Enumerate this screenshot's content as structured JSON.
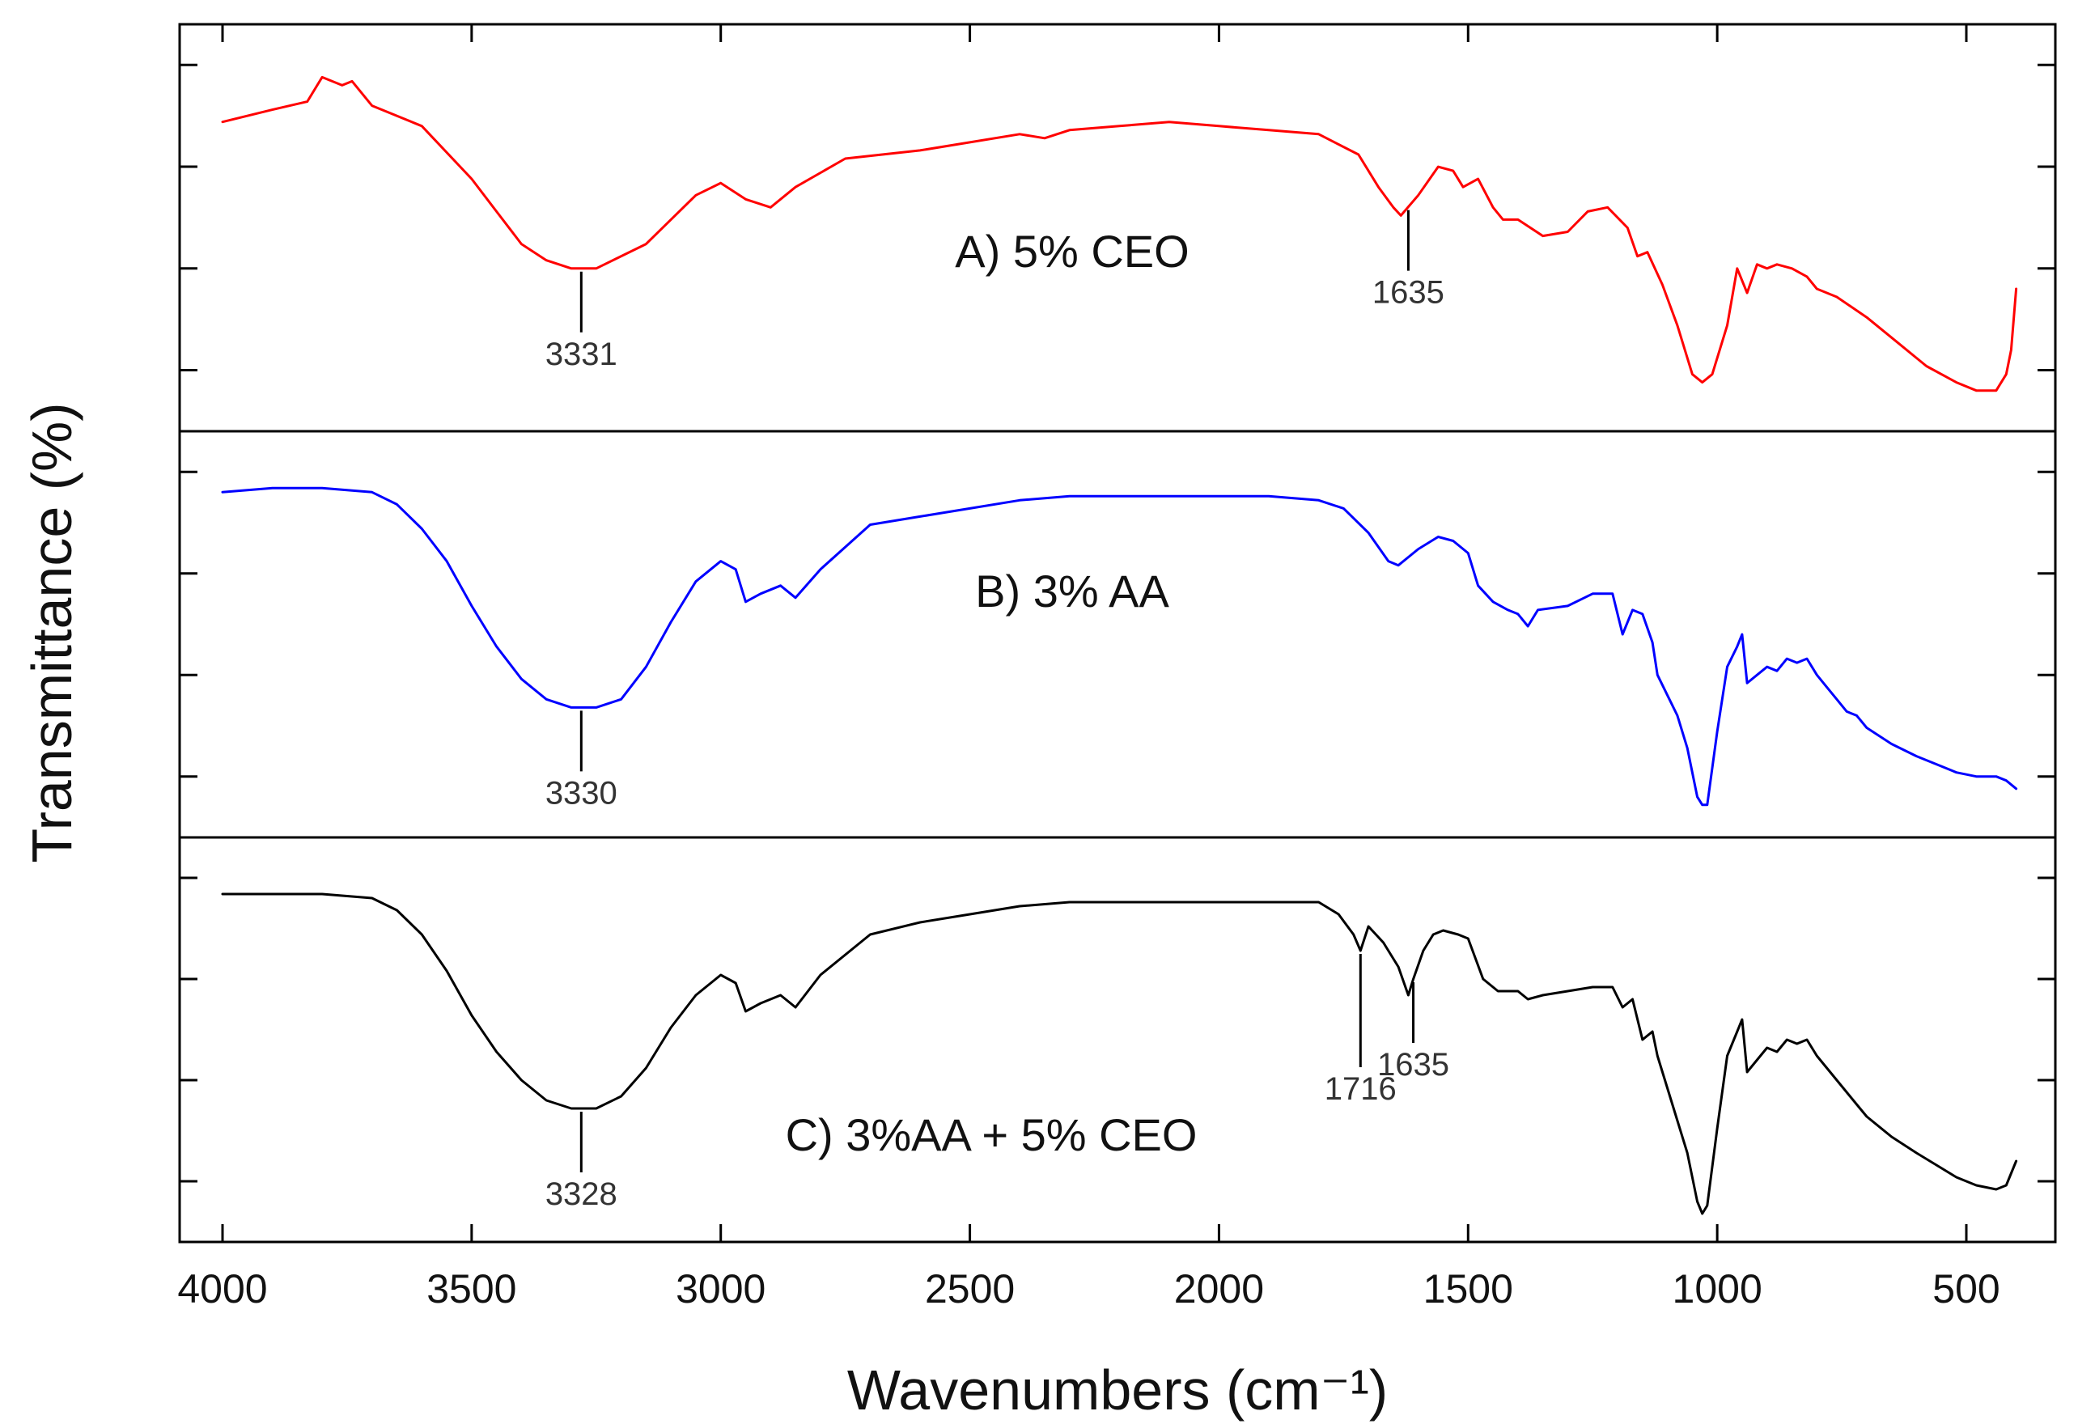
{
  "chart_data": {
    "type": "line",
    "xlabel": "Wavenumbers (cm⁻¹)",
    "ylabel": "Transmittance (%)",
    "xlim": [
      4000,
      400
    ],
    "x_reversed": true,
    "x_ticks": [
      4000,
      3500,
      3000,
      2500,
      2000,
      1500,
      1000,
      500
    ],
    "x_tick_labels": [
      "4000",
      "3500",
      "3000",
      "2500",
      "2000",
      "1500",
      "1000",
      "500"
    ],
    "y_scale": "normalized transmittance, 0 = panel bottom, 1 = panel top",
    "ylim": [
      0,
      1
    ],
    "y_ticks": [
      0.15,
      0.4,
      0.65,
      0.9
    ],
    "grid": false,
    "panels": [
      {
        "label": "A) 5% CEO",
        "color": "#ff0000",
        "x": [
          4000,
          3900,
          3830,
          3800,
          3760,
          3740,
          3700,
          3600,
          3500,
          3450,
          3400,
          3350,
          3300,
          3250,
          3150,
          3050,
          3000,
          2950,
          2900,
          2850,
          2750,
          2600,
          2400,
          2350,
          2300,
          2200,
          2100,
          2000,
          1900,
          1800,
          1720,
          1680,
          1650,
          1635,
          1600,
          1560,
          1530,
          1510,
          1480,
          1450,
          1430,
          1400,
          1350,
          1300,
          1260,
          1220,
          1180,
          1160,
          1140,
          1110,
          1080,
          1050,
          1030,
          1010,
          980,
          960,
          940,
          920,
          900,
          880,
          850,
          820,
          800,
          760,
          700,
          640,
          580,
          520,
          480,
          440,
          420,
          410,
          400
        ],
        "y": [
          0.76,
          0.79,
          0.81,
          0.87,
          0.85,
          0.86,
          0.8,
          0.75,
          0.62,
          0.54,
          0.46,
          0.42,
          0.4,
          0.4,
          0.46,
          0.58,
          0.61,
          0.57,
          0.55,
          0.6,
          0.67,
          0.69,
          0.73,
          0.72,
          0.74,
          0.75,
          0.76,
          0.75,
          0.74,
          0.73,
          0.68,
          0.6,
          0.55,
          0.53,
          0.58,
          0.65,
          0.64,
          0.6,
          0.62,
          0.55,
          0.52,
          0.52,
          0.48,
          0.49,
          0.54,
          0.55,
          0.5,
          0.43,
          0.44,
          0.36,
          0.26,
          0.14,
          0.12,
          0.14,
          0.26,
          0.4,
          0.34,
          0.41,
          0.4,
          0.41,
          0.4,
          0.38,
          0.35,
          0.33,
          0.28,
          0.22,
          0.16,
          0.12,
          0.1,
          0.1,
          0.14,
          0.2,
          0.35
        ]
      },
      {
        "label": "B) 3% AA",
        "color": "#0000ff",
        "x": [
          4000,
          3900,
          3800,
          3700,
          3650,
          3600,
          3550,
          3500,
          3450,
          3400,
          3350,
          3300,
          3250,
          3200,
          3150,
          3100,
          3050,
          3000,
          2970,
          2950,
          2920,
          2880,
          2850,
          2800,
          2700,
          2600,
          2500,
          2400,
          2300,
          2200,
          2100,
          2000,
          1900,
          1800,
          1750,
          1700,
          1660,
          1640,
          1600,
          1560,
          1530,
          1500,
          1480,
          1450,
          1420,
          1400,
          1380,
          1360,
          1300,
          1250,
          1210,
          1190,
          1170,
          1150,
          1130,
          1120,
          1100,
          1080,
          1060,
          1040,
          1030,
          1020,
          1000,
          980,
          960,
          950,
          940,
          920,
          900,
          880,
          860,
          840,
          820,
          800,
          780,
          760,
          740,
          720,
          700,
          650,
          600,
          560,
          520,
          480,
          440,
          420,
          400
        ],
        "y": [
          0.85,
          0.86,
          0.86,
          0.85,
          0.82,
          0.76,
          0.68,
          0.57,
          0.47,
          0.39,
          0.34,
          0.32,
          0.32,
          0.34,
          0.42,
          0.53,
          0.63,
          0.68,
          0.66,
          0.58,
          0.6,
          0.62,
          0.59,
          0.66,
          0.77,
          0.79,
          0.81,
          0.83,
          0.84,
          0.84,
          0.84,
          0.84,
          0.84,
          0.83,
          0.81,
          0.75,
          0.68,
          0.67,
          0.71,
          0.74,
          0.73,
          0.7,
          0.62,
          0.58,
          0.56,
          0.55,
          0.52,
          0.56,
          0.57,
          0.6,
          0.6,
          0.5,
          0.56,
          0.55,
          0.48,
          0.4,
          0.35,
          0.3,
          0.22,
          0.1,
          0.08,
          0.08,
          0.26,
          0.42,
          0.47,
          0.5,
          0.38,
          0.4,
          0.42,
          0.41,
          0.44,
          0.43,
          0.44,
          0.4,
          0.37,
          0.34,
          0.31,
          0.3,
          0.27,
          0.23,
          0.2,
          0.18,
          0.16,
          0.15,
          0.15,
          0.14,
          0.12
        ]
      },
      {
        "label": "C) 3%AA + 5% CEO",
        "color": "#000000",
        "x": [
          4000,
          3900,
          3800,
          3700,
          3650,
          3600,
          3550,
          3500,
          3450,
          3400,
          3350,
          3300,
          3250,
          3200,
          3150,
          3100,
          3050,
          3000,
          2970,
          2950,
          2920,
          2880,
          2850,
          2800,
          2700,
          2600,
          2500,
          2400,
          2300,
          2200,
          2100,
          2000,
          1900,
          1800,
          1760,
          1730,
          1716,
          1700,
          1670,
          1640,
          1620,
          1610,
          1590,
          1570,
          1550,
          1520,
          1500,
          1470,
          1440,
          1400,
          1380,
          1350,
          1300,
          1250,
          1210,
          1190,
          1170,
          1150,
          1130,
          1120,
          1100,
          1080,
          1060,
          1040,
          1030,
          1020,
          1000,
          980,
          960,
          950,
          940,
          920,
          900,
          880,
          860,
          840,
          820,
          800,
          780,
          760,
          740,
          720,
          700,
          650,
          600,
          560,
          520,
          480,
          440,
          420,
          400
        ],
        "y": [
          0.86,
          0.86,
          0.86,
          0.85,
          0.82,
          0.76,
          0.67,
          0.56,
          0.47,
          0.4,
          0.35,
          0.33,
          0.33,
          0.36,
          0.43,
          0.53,
          0.61,
          0.66,
          0.64,
          0.57,
          0.59,
          0.61,
          0.58,
          0.66,
          0.76,
          0.79,
          0.81,
          0.83,
          0.84,
          0.84,
          0.84,
          0.84,
          0.84,
          0.84,
          0.81,
          0.76,
          0.72,
          0.78,
          0.74,
          0.68,
          0.61,
          0.65,
          0.72,
          0.76,
          0.77,
          0.76,
          0.75,
          0.65,
          0.62,
          0.62,
          0.6,
          0.61,
          0.62,
          0.63,
          0.63,
          0.58,
          0.6,
          0.5,
          0.52,
          0.46,
          0.38,
          0.3,
          0.22,
          0.1,
          0.07,
          0.09,
          0.28,
          0.46,
          0.52,
          0.55,
          0.42,
          0.45,
          0.48,
          0.47,
          0.5,
          0.49,
          0.5,
          0.46,
          0.43,
          0.4,
          0.37,
          0.34,
          0.31,
          0.26,
          0.22,
          0.19,
          0.16,
          0.14,
          0.13,
          0.14,
          0.2
        ]
      }
    ],
    "annotations": [
      {
        "panel": 0,
        "x": 3280,
        "text": "3331"
      },
      {
        "panel": 0,
        "x": 1620,
        "text": "1635"
      },
      {
        "panel": 1,
        "x": 3280,
        "text": "3330"
      },
      {
        "panel": 2,
        "x": 3280,
        "text": "3328"
      },
      {
        "panel": 2,
        "x": 1716,
        "text": "1716"
      },
      {
        "panel": 2,
        "x": 1610,
        "text": "1635"
      }
    ]
  }
}
